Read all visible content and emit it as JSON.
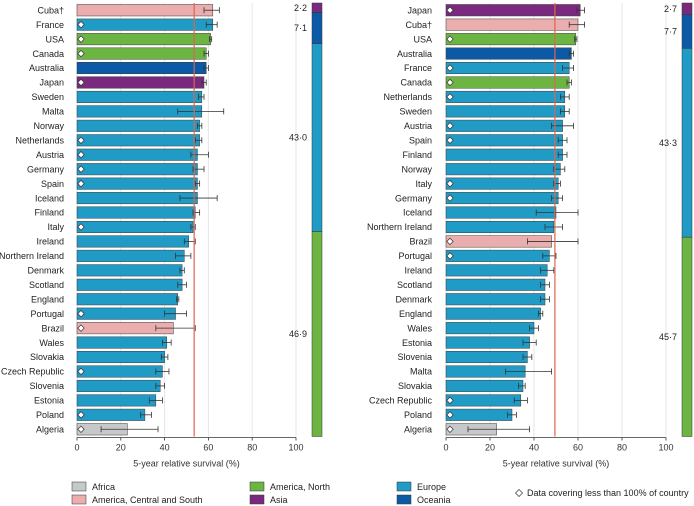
{
  "colors": {
    "Africa": "#c7c8ca",
    "America, Central and South": "#eaaeae",
    "America, North": "#6db543",
    "Asia": "#7a2a7e",
    "Europe": "#1f9bc6",
    "Oceania": "#0c5aa5",
    "reference_line": "#d9664e",
    "bar_stroke": "#3a3a3a"
  },
  "chart_data": [
    {
      "type": "bar",
      "orientation": "horizontal",
      "xlabel": "5-year relative survival (%)",
      "xlim": [
        0,
        100
      ],
      "xticks": [
        "0",
        "20",
        "40",
        "60",
        "80",
        "100"
      ],
      "reference_line": 53.5,
      "categories": [
        "Cuba†",
        "France",
        "USA",
        "Canada",
        "Australia",
        "Japan",
        "Sweden",
        "Malta",
        "Norway",
        "Netherlands",
        "Austria",
        "Germany",
        "Spain",
        "Iceland",
        "Finland",
        "Italy",
        "Ireland",
        "Northern Ireland",
        "Denmark",
        "Scotland",
        "England",
        "Portugal",
        "Brazil",
        "Wales",
        "Slovakia",
        "Czech Republic",
        "Slovenia",
        "Estonia",
        "Poland",
        "Algeria"
      ],
      "regions": [
        "America, Central and South",
        "Europe",
        "America, North",
        "America, North",
        "Oceania",
        "Asia",
        "Europe",
        "Europe",
        "Europe",
        "Europe",
        "Europe",
        "Europe",
        "Europe",
        "Europe",
        "Europe",
        "Europe",
        "Europe",
        "Europe",
        "Europe",
        "Europe",
        "Europe",
        "Europe",
        "America, Central and South",
        "Europe",
        "Europe",
        "Europe",
        "Europe",
        "Europe",
        "Europe",
        "Africa"
      ],
      "values": [
        62,
        62,
        61,
        59,
        59,
        58,
        57,
        57,
        56,
        56,
        55,
        55,
        55,
        55,
        54,
        53,
        51,
        49,
        48,
        48,
        46,
        45,
        44,
        41,
        40,
        39,
        38,
        36,
        31,
        23
      ],
      "ci_low": [
        58,
        59,
        60.5,
        58,
        58,
        57,
        55.5,
        46,
        55,
        54,
        52,
        53,
        54,
        47,
        53,
        52,
        49,
        45,
        47,
        46,
        45.5,
        40,
        36,
        39,
        38.5,
        36,
        36,
        33,
        29,
        11
      ],
      "ci_high": [
        65,
        64,
        61.5,
        60,
        60,
        59,
        58,
        67,
        57,
        57,
        60,
        58,
        56,
        64,
        56,
        54,
        54,
        52,
        49,
        50,
        46.5,
        50,
        54,
        43,
        41.5,
        42,
        40,
        39,
        34,
        37
      ],
      "partial_coverage": [
        false,
        true,
        true,
        true,
        false,
        true,
        false,
        false,
        false,
        true,
        true,
        true,
        true,
        false,
        false,
        true,
        false,
        false,
        false,
        false,
        false,
        true,
        true,
        false,
        false,
        true,
        false,
        false,
        true,
        true
      ],
      "region_shares": [
        {
          "region": "Asia",
          "label": "2·2"
        },
        {
          "region": "Oceania",
          "label": "7·1"
        },
        {
          "region": "Europe",
          "label": "43·0"
        },
        {
          "region": "America, North",
          "label": "46·9"
        }
      ]
    },
    {
      "type": "bar",
      "orientation": "horizontal",
      "xlabel": "5-year relative survival (%)",
      "xlim": [
        0,
        100
      ],
      "xticks": [
        "0",
        "20",
        "40",
        "60",
        "80",
        "100"
      ],
      "reference_line": 49.5,
      "categories": [
        "Japan",
        "Cuba†",
        "USA",
        "Australia",
        "France",
        "Canada",
        "Netherlands",
        "Sweden",
        "Austria",
        "Spain",
        "Finland",
        "Norway",
        "Italy",
        "Germany",
        "Iceland",
        "Northern Ireland",
        "Brazil",
        "Portugal",
        "Ireland",
        "Scotland",
        "Denmark",
        "England",
        "Wales",
        "Estonia",
        "Slovenia",
        "Malta",
        "Slovakia",
        "Czech Republic",
        "Poland",
        "Algeria"
      ],
      "regions": [
        "Asia",
        "America, Central and South",
        "America, North",
        "Oceania",
        "Europe",
        "America, North",
        "Europe",
        "Europe",
        "Europe",
        "Europe",
        "Europe",
        "Europe",
        "Europe",
        "Europe",
        "Europe",
        "Europe",
        "America, Central and South",
        "Europe",
        "Europe",
        "Europe",
        "Europe",
        "Europe",
        "Europe",
        "Europe",
        "Europe",
        "Europe",
        "Europe",
        "Europe",
        "Europe",
        "Africa"
      ],
      "values": [
        61,
        60,
        59,
        57,
        56,
        56,
        54,
        54,
        53,
        53,
        53,
        52,
        51,
        51,
        50,
        49,
        48,
        47,
        46,
        45,
        45,
        43,
        40,
        38,
        37,
        36,
        35,
        34,
        30,
        23
      ],
      "ci_low": [
        59.5,
        56,
        58.5,
        56,
        53,
        55,
        52,
        52,
        48,
        51,
        51,
        49,
        49,
        48,
        41,
        45,
        37,
        44,
        43,
        43,
        43,
        42,
        38,
        35,
        35,
        27,
        33,
        31,
        28,
        10
      ],
      "ci_high": [
        63,
        63,
        59.5,
        58,
        58,
        57,
        56,
        56,
        58,
        55,
        55,
        54,
        52,
        53,
        60,
        53,
        60,
        50,
        49,
        47,
        47,
        44,
        42,
        41,
        39,
        48,
        36,
        37,
        32,
        38
      ],
      "partial_coverage": [
        true,
        false,
        true,
        false,
        true,
        true,
        true,
        false,
        true,
        true,
        false,
        false,
        true,
        true,
        false,
        false,
        true,
        true,
        false,
        false,
        false,
        false,
        false,
        false,
        false,
        false,
        false,
        true,
        true,
        true
      ],
      "region_shares": [
        {
          "region": "Asia",
          "label": "2·7"
        },
        {
          "region": "Oceania",
          "label": "7·7"
        },
        {
          "region": "Europe",
          "label": "43·3"
        },
        {
          "region": "America, North",
          "label": "45·7"
        }
      ]
    }
  ],
  "legend": {
    "items": [
      {
        "label": "Africa",
        "region": "Africa"
      },
      {
        "label": "America, Central and South",
        "region": "America, Central and South"
      },
      {
        "label": "America, North",
        "region": "America, North"
      },
      {
        "label": "Asia",
        "region": "Asia"
      },
      {
        "label": "Europe",
        "region": "Europe"
      },
      {
        "label": "Oceania",
        "region": "Oceania"
      }
    ],
    "diamond_note": "Data covering less than 100% of country"
  }
}
